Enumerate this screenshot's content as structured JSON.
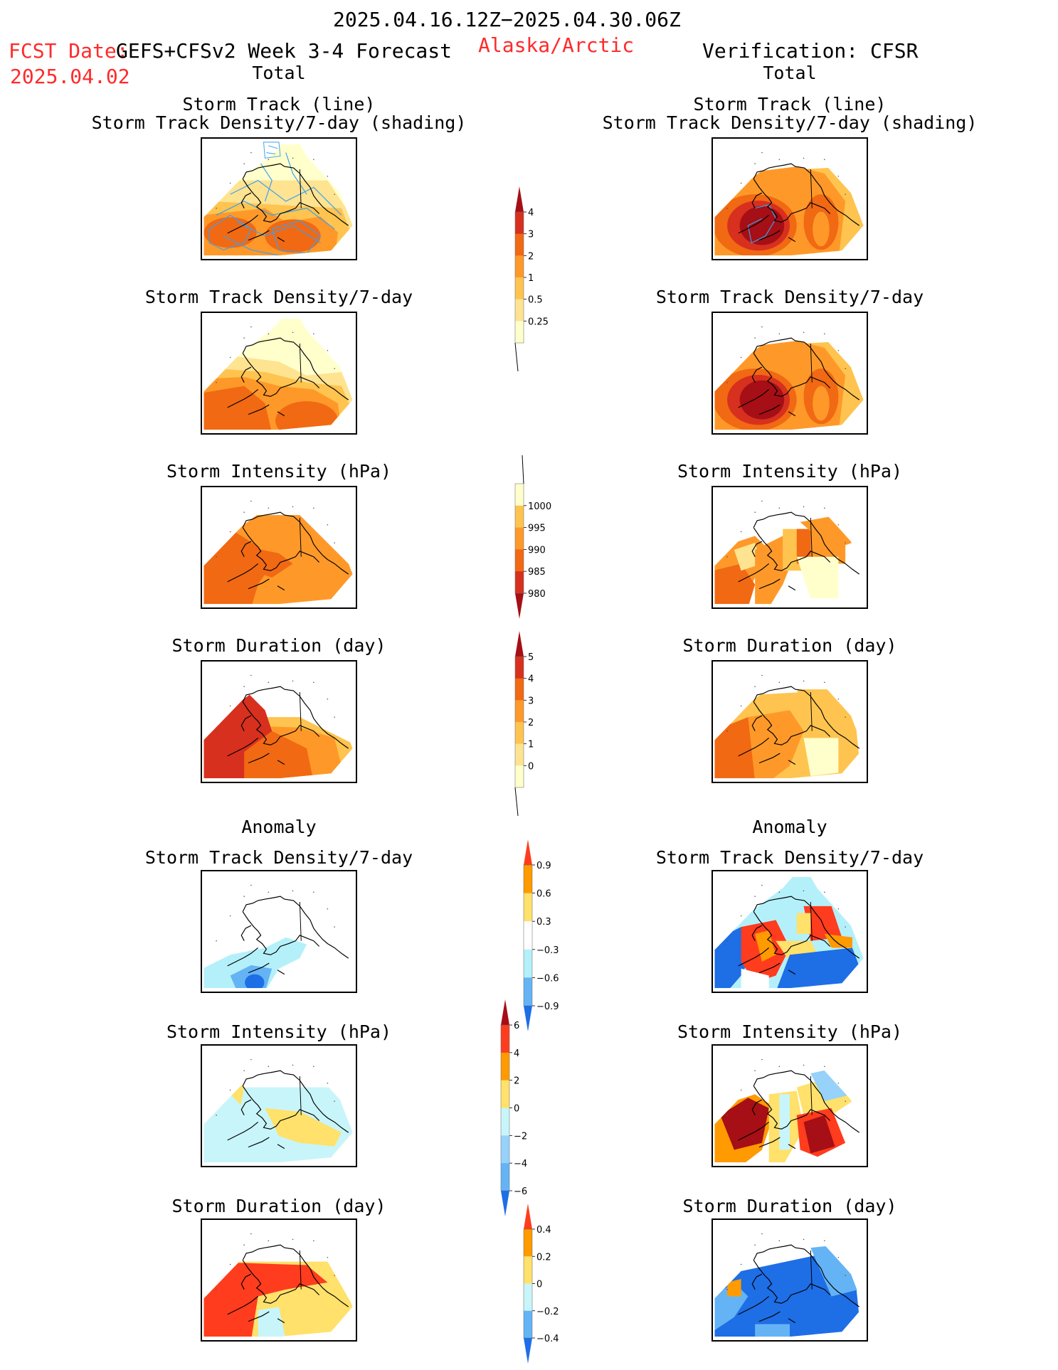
{
  "header": {
    "date_range": "2025.04.16.12Z−2025.04.30.06Z",
    "fcst_date_label": "FCST Date:",
    "fcst_date": "2025.04.02",
    "forecast_name": "GEFS+CFSv2 Week 3-4 Forecast",
    "region": "Alaska/Arctic",
    "verification": "Verification: CFSR"
  },
  "section_total": "Total",
  "section_anomaly": "Anomaly",
  "titles": {
    "track_line": "Storm Track (line)",
    "track_density_shading": "Storm Track Density/7-day (shading)",
    "track_density": "Storm Track Density/7-day",
    "intensity": "Storm Intensity (hPa)",
    "duration": "Storm Duration (day)"
  },
  "colorbars": {
    "density_total": {
      "labels": [
        "4",
        "3",
        "2",
        "1",
        "0.5",
        "0.25"
      ],
      "colors": [
        "#a50f15",
        "#d7301f",
        "#f16913",
        "#fe9929",
        "#fec44f",
        "#fee391",
        "#ffffcc"
      ]
    },
    "intensity_total": {
      "labels": [
        "1000",
        "995",
        "990",
        "985",
        "980"
      ],
      "colors": [
        "#ffffcc",
        "#fec44f",
        "#fe9929",
        "#f16913",
        "#d7301f",
        "#a50f15"
      ]
    },
    "duration_total": {
      "labels": [
        "5",
        "4",
        "3",
        "2",
        "1",
        "0"
      ],
      "colors": [
        "#a50f15",
        "#d7301f",
        "#f16913",
        "#fe9929",
        "#fec44f",
        "#fee391",
        "#ffffcc"
      ]
    },
    "density_anom": {
      "labels": [
        "0.9",
        "0.6",
        "0.3",
        "−0.3",
        "−0.6",
        "−0.9"
      ],
      "colors": [
        "#ff3c1e",
        "#ff9a00",
        "#ffe16b",
        "#ffffff",
        "#b4f0fa",
        "#64b4f5",
        "#1e6ee6"
      ]
    },
    "intensity_anom": {
      "labels": [
        "6",
        "4",
        "2",
        "0",
        "−2",
        "−4",
        "−6"
      ],
      "colors": [
        "#a50f15",
        "#ff3c1e",
        "#ff9a00",
        "#ffe16b",
        "#c8f5fa",
        "#96d2fa",
        "#64b4f5",
        "#1e6ee6"
      ]
    },
    "duration_anom": {
      "labels": [
        "0.4",
        "0.2",
        "0",
        "−0.2",
        "−0.4"
      ],
      "colors": [
        "#ff3c1e",
        "#ff9a00",
        "#ffe16b",
        "#c8f5fa",
        "#64b4f5",
        "#1e6ee6"
      ]
    }
  }
}
